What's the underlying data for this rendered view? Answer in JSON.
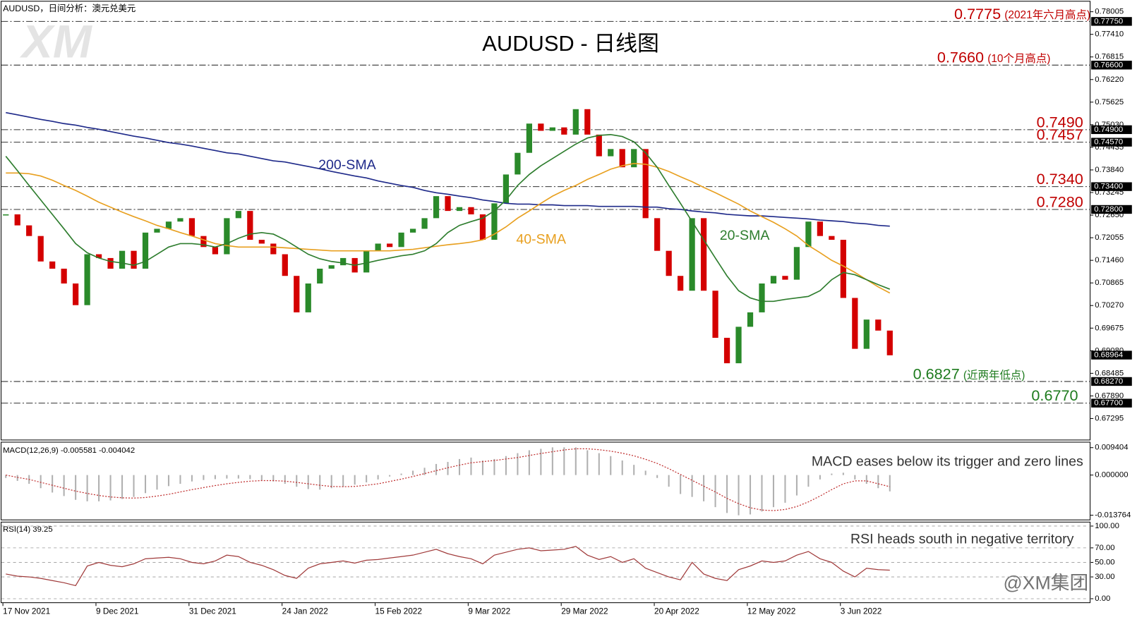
{
  "logo": "XM",
  "watermark": "@XM集团",
  "chart_data": [
    {
      "type": "candlestick",
      "title": "AUDUSD - 日线图",
      "subtitle": "AUDUSD，日间分析：澳元兑美元",
      "categories": [
        "17 Nov 2021",
        null,
        null,
        null,
        null,
        null,
        null,
        null,
        "9 Dec 2021",
        null,
        null,
        null,
        null,
        null,
        null,
        null,
        "31 Dec 2021",
        null,
        null,
        null,
        null,
        null,
        null,
        null,
        "24 Jan 2022",
        null,
        null,
        null,
        null,
        null,
        null,
        null,
        "15 Feb 2022",
        null,
        null,
        null,
        null,
        null,
        null,
        null,
        "9 Mar 2022",
        null,
        null,
        null,
        null,
        null,
        null,
        null,
        "29 Mar 2022",
        null,
        null,
        null,
        null,
        null,
        null,
        null,
        "20 Apr 2022",
        null,
        null,
        null,
        null,
        null,
        null,
        null,
        "12 May 2022",
        null,
        null,
        null,
        null,
        null,
        null,
        null,
        "3 Jun 2022",
        null,
        null,
        null,
        null
      ],
      "values": [
        0.7267,
        0.7238,
        0.721,
        0.7143,
        0.7124,
        0.7085,
        0.7028,
        0.7162,
        0.7152,
        0.7124,
        0.7171,
        0.7124,
        0.7219,
        0.7229,
        0.7248,
        0.7257,
        0.721,
        0.7181,
        0.7162,
        0.7257,
        0.7276,
        0.72,
        0.719,
        0.7162,
        0.7105,
        0.7009,
        0.7085,
        0.7124,
        0.7133,
        0.7152,
        0.7114,
        0.7171,
        0.719,
        0.7181,
        0.7219,
        0.7229,
        0.7257,
        0.7315,
        0.7276,
        0.7286,
        0.7267,
        0.72,
        0.7296,
        0.7372,
        0.7429,
        0.7506,
        0.7487,
        0.7496,
        0.7477,
        0.7544,
        0.7477,
        0.742,
        0.7439,
        0.7391,
        0.7439,
        0.7257,
        0.7171,
        0.7105,
        0.7066,
        0.7257,
        0.7066,
        0.6942,
        0.6875,
        0.6971,
        0.7009,
        0.7085,
        0.7105,
        0.7095,
        0.7181,
        0.7248,
        0.721,
        0.72,
        0.7047,
        0.6913,
        0.699,
        0.6961,
        0.6896
      ],
      "up_color": "#2a8a2a",
      "down_color": "#d40000",
      "series": [
        {
          "name": "200-SMA",
          "color": "#1f2a8a",
          "values": [
            0.7535,
            0.7529,
            0.7523,
            0.7517,
            0.7512,
            0.7506,
            0.7502,
            0.7496,
            0.7491,
            0.7485,
            0.7479,
            0.7473,
            0.7468,
            0.7462,
            0.7456,
            0.7452,
            0.7447,
            0.7441,
            0.7435,
            0.7429,
            0.7426,
            0.742,
            0.7414,
            0.7408,
            0.7405,
            0.7399,
            0.7393,
            0.7387,
            0.738,
            0.7374,
            0.7368,
            0.7363,
            0.7355,
            0.7349,
            0.7343,
            0.7338,
            0.733,
            0.7324,
            0.732,
            0.7315,
            0.7311,
            0.7305,
            0.7301,
            0.7296,
            0.7294,
            0.7294,
            0.7292,
            0.7292,
            0.729,
            0.729,
            0.729,
            0.7288,
            0.7288,
            0.7288,
            0.7288,
            0.7286,
            0.7286,
            0.7282,
            0.728,
            0.7276,
            0.7273,
            0.7271,
            0.7267,
            0.7265,
            0.7263,
            0.7263,
            0.7261,
            0.7259,
            0.7257,
            0.7255,
            0.7252,
            0.725,
            0.7248,
            0.7244,
            0.7242,
            0.7238,
            0.7236
          ]
        },
        {
          "name": "40-SMA",
          "color": "#e8a020",
          "values": [
            0.7376,
            0.7376,
            0.7374,
            0.7368,
            0.7357,
            0.7343,
            0.733,
            0.7315,
            0.7299,
            0.7286,
            0.7273,
            0.7261,
            0.725,
            0.7238,
            0.7229,
            0.7219,
            0.721,
            0.72,
            0.719,
            0.7185,
            0.7181,
            0.7181,
            0.7181,
            0.7181,
            0.7179,
            0.7177,
            0.7175,
            0.7173,
            0.7171,
            0.7171,
            0.7171,
            0.7171,
            0.7171,
            0.7171,
            0.7173,
            0.7175,
            0.7179,
            0.7183,
            0.7187,
            0.719,
            0.7194,
            0.72,
            0.7215,
            0.7234,
            0.7257,
            0.7276,
            0.7296,
            0.7315,
            0.733,
            0.7343,
            0.7359,
            0.7372,
            0.7386,
            0.7395,
            0.7401,
            0.7399,
            0.7391,
            0.738,
            0.7366,
            0.7353,
            0.7338,
            0.7324,
            0.7309,
            0.7294,
            0.7276,
            0.7261,
            0.7246,
            0.7229,
            0.721,
            0.7185,
            0.7166,
            0.7146,
            0.7131,
            0.7114,
            0.7095,
            0.7076,
            0.706
          ]
        },
        {
          "name": "20-SMA",
          "color": "#2e7d2e",
          "values": [
            0.742,
            0.7382,
            0.7343,
            0.7305,
            0.7267,
            0.7229,
            0.719,
            0.7166,
            0.7152,
            0.7143,
            0.7139,
            0.7133,
            0.7143,
            0.7162,
            0.7181,
            0.719,
            0.719,
            0.7187,
            0.7181,
            0.719,
            0.7204,
            0.7215,
            0.7219,
            0.7215,
            0.72,
            0.7181,
            0.7162,
            0.715,
            0.7143,
            0.7139,
            0.7133,
            0.7139,
            0.7146,
            0.7152,
            0.7158,
            0.7162,
            0.7171,
            0.719,
            0.7219,
            0.7238,
            0.7248,
            0.7257,
            0.7276,
            0.7305,
            0.7343,
            0.7372,
            0.7395,
            0.7414,
            0.7433,
            0.7452,
            0.7468,
            0.7475,
            0.7477,
            0.7472,
            0.7458,
            0.7429,
            0.7391,
            0.7343,
            0.7296,
            0.7248,
            0.72,
            0.7152,
            0.7105,
            0.7066,
            0.7047,
            0.7038,
            0.7038,
            0.7043,
            0.7047,
            0.7051,
            0.7066,
            0.7095,
            0.7114,
            0.7108,
            0.7095,
            0.7082,
            0.707
          ]
        }
      ],
      "ylim": [
        0.6672,
        0.7831
      ],
      "yticks": [
        0.78005,
        {
          "value": 0.7741,
          "label": "0.77410"
        },
        0.76815,
        {
          "value": 0.7622,
          "label": "0.76220"
        },
        0.75625,
        {
          "value": 0.7503,
          "label": "0.75030"
        },
        0.74435,
        {
          "value": 0.7384,
          "label": "0.73840"
        },
        0.73245,
        {
          "value": 0.7265,
          "label": "0.72650"
        },
        0.72055,
        {
          "value": 0.7146,
          "label": "0.71460"
        },
        0.70865,
        {
          "value": 0.7027,
          "label": "0.70270"
        },
        0.69675,
        {
          "value": 0.6908,
          "label": "0.69080"
        },
        0.68485,
        {
          "value": 0.6789,
          "label": "0.67890"
        },
        0.67295
      ],
      "levels": [
        {
          "value": 0.7775,
          "label": "0.77750",
          "text": "0.7775",
          "note": "(2021年六月高点)",
          "color": "#c00000"
        },
        {
          "value": 0.766,
          "label": "0.76600",
          "text": "0.7660",
          "note": "(10个月高点)",
          "color": "#c00000"
        },
        {
          "value": 0.749,
          "label": "0.74900",
          "text": "0.7490",
          "color": "#c00000"
        },
        {
          "value": 0.7457,
          "label": "0.74570",
          "text": "0.7457",
          "color": "#c00000"
        },
        {
          "value": 0.734,
          "label": "0.73400",
          "text": "0.7340",
          "color": "#c00000"
        },
        {
          "value": 0.728,
          "label": "0.72800",
          "text": "0.7280",
          "color": "#c00000"
        },
        {
          "value": 0.6827,
          "label": "0.68270",
          "text": "0.6827",
          "note": "(近两年低点)",
          "color": "#1e7b1e"
        },
        {
          "value": 0.677,
          "label": "0.67700",
          "text": "0.6770",
          "color": "#1e7b1e"
        }
      ],
      "last": {
        "value": 0.68964,
        "label": "0.68964"
      }
    },
    {
      "type": "macd",
      "title": "MACD(12,26,9) -0.005581 -0.004042",
      "annotation": "MACD eases below its trigger and zero lines",
      "series": [
        {
          "color": "#b0b0b0",
          "values": [
            -0.001,
            -0.002,
            -0.003,
            -0.0045,
            -0.006,
            -0.0072,
            -0.0085,
            -0.009,
            -0.009,
            -0.0087,
            -0.0082,
            -0.0075,
            -0.0062,
            -0.005,
            -0.0038,
            -0.003,
            -0.0022,
            -0.0017,
            -0.0014,
            -0.0012,
            -0.0012,
            -0.0014,
            -0.0018,
            -0.0022,
            -0.003,
            -0.004,
            -0.0048,
            -0.005,
            -0.0045,
            -0.004,
            -0.0033,
            -0.0025,
            -0.0015,
            -0.0005,
            0.0005,
            0.0015,
            0.0025,
            0.0038,
            0.0045,
            0.0055,
            0.006,
            0.005,
            0.0055,
            0.0065,
            0.0075,
            0.0085,
            0.009,
            0.0095,
            0.0095,
            0.0095,
            0.0085,
            0.0075,
            0.0065,
            0.005,
            0.0035,
            0.0015,
            -0.001,
            -0.004,
            -0.0065,
            -0.0075,
            -0.009,
            -0.011,
            -0.013,
            -0.0138,
            -0.0135,
            -0.0125,
            -0.011,
            -0.0095,
            -0.007,
            -0.004,
            -0.0015,
            0.0005,
            0.0008,
            -0.0015,
            -0.003,
            -0.0045,
            -0.0056
          ]
        },
        {
          "color": "#c03030",
          "values": [
            0.0,
            -0.0008,
            -0.0015,
            -0.0025,
            -0.0035,
            -0.0045,
            -0.0055,
            -0.0063,
            -0.007,
            -0.0075,
            -0.0078,
            -0.0079,
            -0.0077,
            -0.0072,
            -0.0066,
            -0.0058,
            -0.005,
            -0.0043,
            -0.0036,
            -0.003,
            -0.0025,
            -0.0021,
            -0.0019,
            -0.0019,
            -0.0021,
            -0.0025,
            -0.003,
            -0.0035,
            -0.0039,
            -0.004,
            -0.0039,
            -0.0035,
            -0.003,
            -0.0022,
            -0.0014,
            -0.0005,
            0.0005,
            0.0015,
            0.0025,
            0.0034,
            0.0042,
            0.0046,
            0.005,
            0.0055,
            0.006,
            0.0067,
            0.0074,
            0.008,
            0.0086,
            0.009,
            0.009,
            0.0087,
            0.0082,
            0.0075,
            0.0066,
            0.0054,
            0.004,
            0.0022,
            0.0002,
            -0.0018,
            -0.0038,
            -0.0058,
            -0.008,
            -0.0098,
            -0.0112,
            -0.012,
            -0.0122,
            -0.0118,
            -0.0108,
            -0.0092,
            -0.0072,
            -0.005,
            -0.003,
            -0.002,
            -0.002,
            -0.003,
            -0.004
          ]
        }
      ],
      "ylim": [
        -0.0155,
        0.0114
      ],
      "yticks": [
        0.009404,
        {
          "value": 0,
          "label": "0.000000"
        },
        -0.013764
      ]
    },
    {
      "type": "line",
      "title": "RSI(14) 39.25",
      "annotation": "RSI heads south in negative territory",
      "color": "#a03a3a",
      "values": [
        34,
        31,
        30,
        28,
        25,
        22,
        18,
        45,
        50,
        46,
        44,
        48,
        55,
        56,
        57,
        55,
        50,
        48,
        52,
        60,
        58,
        50,
        46,
        40,
        32,
        28,
        42,
        48,
        50,
        52,
        49,
        53,
        54,
        56,
        58,
        60,
        64,
        68,
        62,
        58,
        55,
        48,
        60,
        64,
        68,
        70,
        66,
        67,
        68,
        72,
        60,
        54,
        58,
        50,
        55,
        42,
        36,
        30,
        26,
        50,
        34,
        28,
        25,
        40,
        45,
        52,
        50,
        52,
        60,
        65,
        55,
        50,
        38,
        30,
        42,
        40,
        39.25
      ],
      "ylim": [
        -6,
        106
      ],
      "yticks": [
        {
          "value": 100,
          "label": "100.00"
        },
        {
          "value": 70,
          "label": "70.00"
        },
        {
          "value": 50,
          "label": "50.00"
        },
        {
          "value": 30,
          "label": "30.00"
        },
        {
          "value": 0,
          "label": "0.00"
        }
      ],
      "grid": true
    }
  ]
}
